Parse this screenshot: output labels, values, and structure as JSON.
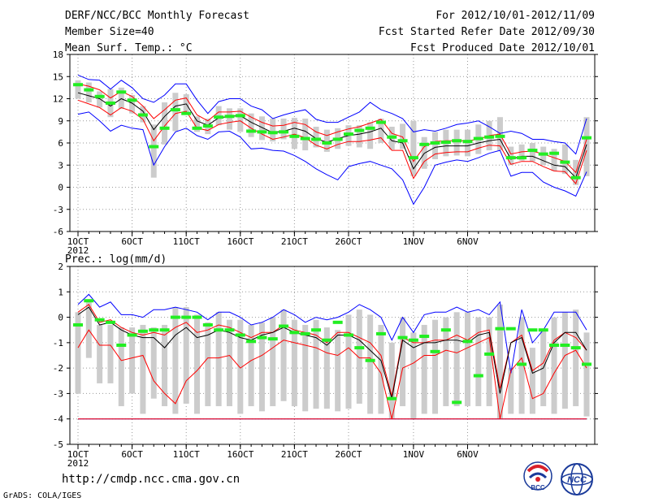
{
  "header": {
    "title": "DERF/NCC/BCC Monthly Forecast",
    "member_size": "Member Size=40",
    "var1": "Mean Surf. Temp.: °C",
    "period": "For 2012/10/01-2012/11/09",
    "started": "Fcst Started Refer Date 2012/09/30",
    "produced": "Fcst Produced Date 2012/10/01"
  },
  "footer": {
    "url": "http://cmdp.ncc.cma.gov.cn",
    "grads": "GrADS: COLA/IGES"
  },
  "logos": {
    "bcc": "BCC",
    "ncc": "NCC"
  },
  "colors": {
    "max_min": "#0000ff",
    "percentile": "#ff0000",
    "mean": "#000000",
    "obs": "#22ee22",
    "box": "#cccccc",
    "grid": "#999999"
  },
  "chart_data": [
    {
      "type": "line",
      "title": "Mean Surf. Temp.: °C",
      "xlabel": "",
      "ylabel": "",
      "ylim": [
        -6,
        18
      ],
      "yticks": [
        -6,
        -3,
        0,
        3,
        6,
        9,
        12,
        15,
        18
      ],
      "x_ticks": [
        {
          "day": 1,
          "label": "1OCT",
          "sub": "2012"
        },
        {
          "day": 6,
          "label": "6OCT"
        },
        {
          "day": 11,
          "label": "11OCT"
        },
        {
          "day": 16,
          "label": "16OCT"
        },
        {
          "day": 21,
          "label": "21OCT"
        },
        {
          "day": 26,
          "label": "26OCT"
        },
        {
          "day": 32,
          "label": "1NOV"
        },
        {
          "day": 37,
          "label": "6NOV"
        }
      ],
      "days": 40,
      "grid": true,
      "series": [
        {
          "name": "max",
          "values": [
            15.2,
            14.6,
            14.5,
            13.3,
            14.5,
            13.5,
            12,
            11.5,
            12.5,
            14,
            14,
            11.8,
            10,
            11.6,
            12,
            12,
            11,
            10.5,
            9.3,
            9.8,
            10.2,
            10.5,
            9.2,
            8.8,
            8.8,
            9.5,
            10.2,
            11.5,
            10.5,
            10,
            9.3,
            7.5,
            7.8,
            7.6,
            8,
            8.5,
            8.7,
            9,
            8.2,
            7.3,
            7.6,
            7.3,
            6.5,
            6.5,
            6.2,
            6,
            4.5,
            9.3
          ]
        },
        {
          "name": "p75",
          "values": [
            14,
            13.7,
            13.2,
            12.1,
            13,
            12.3,
            11,
            9.3,
            10.5,
            11.8,
            12.1,
            9.8,
            9,
            10.2,
            10.2,
            10.3,
            9.5,
            8.8,
            8.3,
            8.4,
            8.8,
            8.5,
            7.5,
            7,
            7.5,
            7.9,
            8.2,
            8.7,
            9.2,
            7.3,
            6.8,
            3.5,
            5.5,
            6.2,
            6.3,
            6.3,
            6.3,
            6.5,
            7,
            7.2,
            4.5,
            4.8,
            4.9,
            4.5,
            4,
            3.5,
            2,
            6.5
          ]
        },
        {
          "name": "mean",
          "values": [
            12.8,
            12.4,
            12,
            11,
            12,
            11.4,
            10.3,
            7.8,
            9.6,
            11,
            11.3,
            9,
            8.4,
            9.4,
            9.6,
            9.7,
            8.8,
            8.1,
            7.4,
            7.6,
            8,
            7.6,
            6.6,
            6.1,
            6.6,
            7,
            7.2,
            7.5,
            8,
            6.3,
            6,
            2.5,
            4.6,
            5.4,
            5.6,
            5.6,
            5.6,
            6,
            6.3,
            6.5,
            3.8,
            4.2,
            4.2,
            3.6,
            3,
            2.8,
            1.3,
            5.8
          ]
        },
        {
          "name": "p25",
          "values": [
            11.8,
            11.3,
            10.8,
            9.8,
            10.8,
            10.3,
            9.2,
            6.3,
            8.3,
            10,
            10.3,
            8,
            7.7,
            8.5,
            8.8,
            9,
            8,
            7.2,
            6.5,
            6.8,
            7.2,
            6.7,
            5.7,
            5.2,
            5.8,
            6.2,
            6.2,
            6.4,
            6.7,
            5,
            5,
            1.2,
            3.5,
            4.5,
            4.7,
            4.8,
            4.8,
            5.3,
            5.7,
            5.6,
            3.1,
            3.5,
            3.5,
            2.8,
            2.2,
            2.1,
            0.5,
            5
          ]
        },
        {
          "name": "min",
          "values": [
            9.9,
            10.2,
            9,
            7.6,
            8.4,
            8,
            7.8,
            3,
            5.5,
            7.5,
            8,
            7,
            6.5,
            7.5,
            7.6,
            6.8,
            5.2,
            5.3,
            5,
            4.9,
            4.3,
            3.5,
            2.5,
            1.7,
            1,
            2.8,
            3.2,
            3.5,
            3,
            2.5,
            1,
            -2.3,
            0,
            3,
            3.4,
            3.7,
            3.5,
            4,
            4.6,
            5,
            1.5,
            2,
            2,
            0.7,
            0,
            -0.5,
            -1.2,
            2.1
          ]
        },
        {
          "name": "box_low",
          "values": [
            12,
            11.5,
            10.8,
            9.5,
            10.6,
            10,
            8.8,
            1.3,
            5.8,
            7.6,
            9.8,
            7.5,
            7.2,
            8.4,
            7.8,
            7.5,
            6.8,
            6.4,
            6.2,
            6.5,
            5.2,
            5,
            5.4,
            4.8,
            5.2,
            5.6,
            5.4,
            5.2,
            6,
            5.1,
            5.2,
            1.5,
            2.5,
            3.8,
            4.2,
            4.3,
            4.2,
            4.5,
            5,
            5,
            3,
            3.6,
            3.5,
            3,
            2.2,
            1.8,
            0.3,
            1.5
          ]
        },
        {
          "name": "box_high",
          "values": [
            14.5,
            14.2,
            13,
            13.3,
            13.5,
            12.5,
            11,
            8.5,
            11.5,
            12.8,
            12.6,
            9.6,
            9.3,
            11,
            10.7,
            10.7,
            10,
            9.6,
            9.3,
            9.3,
            9.4,
            9.3,
            8.2,
            7.8,
            8,
            8.4,
            8.4,
            8.8,
            9.3,
            8.2,
            8.6,
            9,
            6.8,
            7.5,
            7.8,
            7.8,
            7.8,
            8.5,
            9,
            9.5,
            5.5,
            5.8,
            6,
            5.5,
            5.2,
            5.8,
            3.7,
            9.5
          ]
        },
        {
          "name": "observed",
          "values": [
            13.9,
            13.2,
            12.3,
            11.4,
            12.9,
            11.8,
            9.8,
            5.5,
            8,
            10.5,
            10,
            8,
            8.3,
            9.5,
            9.6,
            9.7,
            7.6,
            7.5,
            7.4,
            7.5,
            6.9,
            6.6,
            6.5,
            6,
            6.5,
            7.2,
            7.7,
            8,
            8.8,
            6.8,
            6.3,
            4,
            5.8,
            6,
            6.1,
            6.3,
            6.2,
            6.6,
            6.8,
            6.9,
            4,
            4,
            5,
            4.5,
            4.6,
            3.4,
            1.3,
            6.7
          ]
        }
      ]
    },
    {
      "type": "line",
      "title": "Prec.: log(mm/d)",
      "xlabel": "",
      "ylabel": "",
      "ylim": [
        -5,
        2
      ],
      "yticks": [
        -5,
        -4,
        -3,
        -2,
        -1,
        0,
        1,
        2
      ],
      "x_ticks": [
        {
          "day": 1,
          "label": "1OCT",
          "sub": "2012"
        },
        {
          "day": 6,
          "label": "6OCT"
        },
        {
          "day": 11,
          "label": "11OCT"
        },
        {
          "day": 16,
          "label": "16OCT"
        },
        {
          "day": 21,
          "label": "21OCT"
        },
        {
          "day": 26,
          "label": "26OCT"
        },
        {
          "day": 32,
          "label": "1NOV"
        },
        {
          "day": 37,
          "label": "6NOV"
        }
      ],
      "days": 40,
      "grid": true,
      "series": [
        {
          "name": "max",
          "values": [
            0.5,
            0.9,
            0.4,
            0.6,
            0.1,
            0.1,
            0,
            0.3,
            0.3,
            0.4,
            0.3,
            0.2,
            -0.1,
            0.2,
            0.2,
            0,
            -0.3,
            -0.2,
            0,
            0.3,
            0.1,
            -0.2,
            0,
            -0.1,
            0,
            0.2,
            0.5,
            0.3,
            0,
            -0.9,
            0,
            -0.6,
            0.1,
            0.2,
            0.2,
            0.4,
            0.2,
            0.3,
            0.1,
            0.6,
            -2.2,
            0.3,
            -1,
            -0.5,
            0.2,
            0.2,
            0.2,
            -0.5
          ]
        },
        {
          "name": "p75",
          "values": [
            0.2,
            0.5,
            -0.2,
            -0.1,
            -0.4,
            -0.6,
            -0.7,
            -0.6,
            -0.7,
            -0.4,
            -0.2,
            -0.6,
            -0.5,
            -0.3,
            -0.4,
            -0.6,
            -0.8,
            -0.6,
            -0.6,
            -0.3,
            -0.5,
            -0.6,
            -0.7,
            -1,
            -0.6,
            -0.6,
            -0.8,
            -1,
            -1.5,
            -3.1,
            -0.8,
            -1,
            -1,
            -0.9,
            -0.9,
            -0.7,
            -0.9,
            -0.6,
            -0.5,
            -2.8,
            -1,
            -0.7,
            -2.1,
            -1.8,
            -0.9,
            -0.6,
            -0.8,
            -1.3
          ]
        },
        {
          "name": "mean",
          "values": [
            0.1,
            0.4,
            -0.3,
            -0.2,
            -0.5,
            -0.7,
            -0.8,
            -0.8,
            -1.2,
            -0.7,
            -0.4,
            -0.8,
            -0.7,
            -0.5,
            -0.6,
            -0.8,
            -0.9,
            -0.7,
            -0.6,
            -0.4,
            -0.6,
            -0.7,
            -0.8,
            -1.1,
            -0.7,
            -0.7,
            -0.9,
            -1.3,
            -1.7,
            -3.2,
            -0.9,
            -1.2,
            -1,
            -1,
            -0.9,
            -0.9,
            -1,
            -0.7,
            -0.6,
            -3,
            -1,
            -0.8,
            -2.2,
            -2,
            -1,
            -0.6,
            -0.6,
            -1.3
          ]
        },
        {
          "name": "p25",
          "values": [
            -1.2,
            -0.5,
            -1.1,
            -1.1,
            -1.7,
            -1.6,
            -1.5,
            -2.5,
            -3,
            -3.4,
            -2.5,
            -2.1,
            -1.6,
            -1.6,
            -1.5,
            -2,
            -1.7,
            -1.5,
            -1.2,
            -0.9,
            -1,
            -1.1,
            -1.2,
            -1.4,
            -1.5,
            -1.2,
            -1.6,
            -1.6,
            -2.2,
            -4,
            -2,
            -1.8,
            -1.5,
            -1.5,
            -1.3,
            -1.4,
            -1.2,
            -1,
            -0.8,
            -4,
            -2.1,
            -1.6,
            -3.2,
            -3,
            -2.2,
            -1.5,
            -1.3,
            -2
          ]
        },
        {
          "name": "min",
          "values": [
            -4,
            -4,
            -4,
            -4,
            -4,
            -4,
            -4,
            -4,
            -4,
            -4,
            -4,
            -4,
            -4,
            -4,
            -4,
            -4,
            -4,
            -4,
            -4,
            -4,
            -4,
            -4,
            -4,
            -4,
            -4,
            -4,
            -4,
            -4,
            -4,
            -4,
            -4,
            -4,
            -4,
            -4,
            -4,
            -4,
            -4,
            -4,
            -4,
            -4,
            -4,
            -4,
            -4,
            -4,
            -4,
            -4,
            -4,
            -4
          ]
        },
        {
          "name": "p10",
          "values": [
            -4,
            -4,
            -4,
            -4,
            -4,
            -4,
            -4,
            -4,
            -4,
            -4,
            -4,
            -4,
            -4,
            -4,
            -4,
            -4,
            -4,
            -4,
            -4,
            -4,
            -4,
            -4,
            -4,
            -4,
            -4,
            -4,
            -4,
            -4,
            -4,
            -4,
            -4,
            -4,
            -4,
            -4,
            -4,
            -4,
            -4,
            -4,
            -4,
            -4,
            -4,
            -4,
            -4,
            -4,
            -4,
            -4,
            -4,
            -4
          ]
        },
        {
          "name": "box_low",
          "values": [
            -3,
            -1.6,
            -2.6,
            -2.6,
            -3.5,
            -3,
            -3.8,
            -3.2,
            -3.5,
            -3.8,
            -3.4,
            -3.8,
            -3.5,
            -3.5,
            -3.5,
            -3.8,
            -3.5,
            -3.7,
            -3.5,
            -3.3,
            -3.5,
            -3.7,
            -3.6,
            -3.6,
            -3.7,
            -3.6,
            -3.4,
            -3.8,
            -3.8,
            -4,
            -3.5,
            -4,
            -3.8,
            -3.8,
            -3.5,
            -3.5,
            -3.5,
            -3.5,
            -3.5,
            -4,
            -3.8,
            -3.8,
            -3.8,
            -3.5,
            -3.8,
            -3.6,
            -3.5,
            -3.9
          ]
        },
        {
          "name": "box_high",
          "values": [
            0.2,
            0.6,
            -0.3,
            -0.3,
            -0.4,
            -0.4,
            -0.3,
            -0.4,
            -0.3,
            0.4,
            0.4,
            0.1,
            -0.2,
            0.2,
            -0.1,
            -0.1,
            -0.3,
            -0.2,
            0,
            0.3,
            -0.1,
            -0.3,
            -0.1,
            -0.4,
            -0.5,
            0.1,
            0.3,
            0.1,
            -0.3,
            -1,
            0,
            -0.6,
            -0.3,
            -0.1,
            0,
            0.2,
            0.2,
            0,
            0,
            0.5,
            -2,
            0,
            -1.2,
            -0.5,
            0,
            0.2,
            0.3,
            -0.6
          ]
        },
        {
          "name": "observed",
          "values": [
            -0.3,
            0.65,
            -0.1,
            -0.2,
            -1.1,
            -0.7,
            -0.55,
            -0.5,
            -0.5,
            0,
            0,
            0,
            -0.3,
            -0.5,
            -0.5,
            -0.7,
            -0.95,
            -0.8,
            -0.85,
            -0.35,
            -0.6,
            -0.65,
            -0.5,
            -0.9,
            -0.2,
            -0.7,
            -1.2,
            -1.7,
            -0.65,
            -3.2,
            -0.8,
            -0.9,
            -0.75,
            -1.35,
            -0.5,
            -3.35,
            -0.95,
            -2.3,
            -1.45,
            -0.45,
            -0.45,
            -1.85,
            -0.5,
            -0.5,
            -1.1,
            -1.1,
            -1.2,
            -1.85
          ]
        }
      ]
    }
  ]
}
